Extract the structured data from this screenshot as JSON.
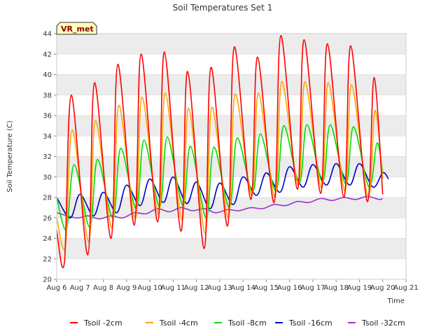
{
  "chart_data": {
    "type": "line",
    "title": "Soil Temperatures Set 1",
    "xlabel": "Time",
    "ylabel": "Soil Temperature (C)",
    "badge": "VR_met",
    "x_ticks": [
      "Aug 6",
      "Aug 7",
      "Aug 8",
      "Aug 9",
      "Aug 10",
      "Aug 11",
      "Aug 12",
      "Aug 13",
      "Aug 14",
      "Aug 15",
      "Aug 16",
      "Aug 17",
      "Aug 18",
      "Aug 19",
      "Aug 20",
      "Aug 21"
    ],
    "xlim": [
      "2024-08-06",
      "2024-08-21"
    ],
    "ylim": [
      20,
      44
    ],
    "y_ticks": [
      20,
      22,
      24,
      26,
      28,
      30,
      32,
      34,
      36,
      38,
      40,
      42,
      44
    ],
    "grid": "horizontal bands",
    "legend_position": "bottom",
    "sampling": "daily minimum (early morning) and daily maximum (afternoon)",
    "series": [
      {
        "name": "Tsoil -2cm",
        "color": "#ff0000",
        "points": [
          [
            "Aug 6 00:00",
            24.8
          ],
          [
            "Aug 6 08:00",
            21.7
          ],
          [
            "Aug 6 15:00",
            38.0
          ],
          [
            "Aug 7 08:00",
            22.4
          ],
          [
            "Aug 7 15:00",
            39.2
          ],
          [
            "Aug 8 08:00",
            24.0
          ],
          [
            "Aug 8 15:00",
            41.0
          ],
          [
            "Aug 9 08:00",
            25.3
          ],
          [
            "Aug 9 15:00",
            42.0
          ],
          [
            "Aug 10 08:00",
            25.6
          ],
          [
            "Aug 10 15:00",
            42.2
          ],
          [
            "Aug 11 08:00",
            24.7
          ],
          [
            "Aug 11 15:00",
            40.3
          ],
          [
            "Aug 12 08:00",
            23.0
          ],
          [
            "Aug 12 15:00",
            40.7
          ],
          [
            "Aug 13 08:00",
            25.2
          ],
          [
            "Aug 13 15:00",
            42.7
          ],
          [
            "Aug 14 08:00",
            27.8
          ],
          [
            "Aug 14 15:00",
            41.7
          ],
          [
            "Aug 15 08:00",
            27.5
          ],
          [
            "Aug 15 15:00",
            43.8
          ],
          [
            "Aug 16 08:00",
            28.8
          ],
          [
            "Aug 16 15:00",
            43.4
          ],
          [
            "Aug 17 08:00",
            28.4
          ],
          [
            "Aug 17 15:00",
            43.0
          ],
          [
            "Aug 18 08:00",
            28.0
          ],
          [
            "Aug 18 15:00",
            42.8
          ],
          [
            "Aug 19 08:00",
            27.6
          ],
          [
            "Aug 19 15:00",
            39.7
          ],
          [
            "Aug 20 00:00",
            28.3
          ]
        ]
      },
      {
        "name": "Tsoil -4cm",
        "color": "#ffa500",
        "points": [
          [
            "Aug 6 00:00",
            26.0
          ],
          [
            "Aug 6 09:00",
            23.2
          ],
          [
            "Aug 6 16:00",
            34.6
          ],
          [
            "Aug 7 09:00",
            23.7
          ],
          [
            "Aug 7 16:00",
            35.5
          ],
          [
            "Aug 8 09:00",
            25.0
          ],
          [
            "Aug 8 16:00",
            37.0
          ],
          [
            "Aug 9 09:00",
            26.0
          ],
          [
            "Aug 9 16:00",
            37.8
          ],
          [
            "Aug 10 09:00",
            26.3
          ],
          [
            "Aug 10 16:00",
            38.2
          ],
          [
            "Aug 11 09:00",
            25.8
          ],
          [
            "Aug 11 16:00",
            36.7
          ],
          [
            "Aug 12 09:00",
            24.5
          ],
          [
            "Aug 12 16:00",
            36.8
          ],
          [
            "Aug 13 09:00",
            26.0
          ],
          [
            "Aug 13 16:00",
            38.1
          ],
          [
            "Aug 14 09:00",
            28.2
          ],
          [
            "Aug 14 16:00",
            38.2
          ],
          [
            "Aug 15 09:00",
            28.0
          ],
          [
            "Aug 15 16:00",
            39.3
          ],
          [
            "Aug 16 09:00",
            29.2
          ],
          [
            "Aug 16 16:00",
            39.3
          ],
          [
            "Aug 17 09:00",
            28.9
          ],
          [
            "Aug 17 16:00",
            39.2
          ],
          [
            "Aug 18 09:00",
            28.6
          ],
          [
            "Aug 18 16:00",
            39.0
          ],
          [
            "Aug 19 09:00",
            28.0
          ],
          [
            "Aug 19 16:00",
            36.5
          ],
          [
            "Aug 20 00:00",
            29.8
          ]
        ]
      },
      {
        "name": "Tsoil -8cm",
        "color": "#00dd00",
        "points": [
          [
            "Aug 6 00:00",
            28.0
          ],
          [
            "Aug 6 10:00",
            24.9
          ],
          [
            "Aug 6 18:00",
            31.2
          ],
          [
            "Aug 7 10:00",
            25.1
          ],
          [
            "Aug 7 18:00",
            31.7
          ],
          [
            "Aug 8 10:00",
            26.0
          ],
          [
            "Aug 8 18:00",
            32.8
          ],
          [
            "Aug 9 10:00",
            26.9
          ],
          [
            "Aug 9 18:00",
            33.6
          ],
          [
            "Aug 10 10:00",
            27.1
          ],
          [
            "Aug 10 18:00",
            33.9
          ],
          [
            "Aug 11 10:00",
            27.2
          ],
          [
            "Aug 11 18:00",
            33.0
          ],
          [
            "Aug 12 10:00",
            26.0
          ],
          [
            "Aug 12 18:00",
            32.9
          ],
          [
            "Aug 13 10:00",
            27.0
          ],
          [
            "Aug 13 18:00",
            33.8
          ],
          [
            "Aug 14 10:00",
            28.5
          ],
          [
            "Aug 14 18:00",
            34.2
          ],
          [
            "Aug 15 10:00",
            28.6
          ],
          [
            "Aug 15 18:00",
            35.0
          ],
          [
            "Aug 16 10:00",
            29.4
          ],
          [
            "Aug 16 18:00",
            35.1
          ],
          [
            "Aug 17 10:00",
            29.5
          ],
          [
            "Aug 17 18:00",
            35.1
          ],
          [
            "Aug 18 10:00",
            29.3
          ],
          [
            "Aug 18 18:00",
            34.9
          ],
          [
            "Aug 19 10:00",
            29.0
          ],
          [
            "Aug 19 18:00",
            33.3
          ],
          [
            "Aug 20 00:00",
            30.5
          ]
        ]
      },
      {
        "name": "Tsoil -16cm",
        "color": "#0000cc",
        "points": [
          [
            "Aug 6 00:00",
            28.0
          ],
          [
            "Aug 6 14:00",
            26.0
          ],
          [
            "Aug 7 00:00",
            28.3
          ],
          [
            "Aug 7 14:00",
            26.2
          ],
          [
            "Aug 8 00:00",
            28.5
          ],
          [
            "Aug 8 14:00",
            26.5
          ],
          [
            "Aug 9 00:00",
            29.2
          ],
          [
            "Aug 9 14:00",
            27.2
          ],
          [
            "Aug 10 00:00",
            29.8
          ],
          [
            "Aug 10 14:00",
            27.5
          ],
          [
            "Aug 11 00:00",
            30.0
          ],
          [
            "Aug 11 14:00",
            27.4
          ],
          [
            "Aug 12 00:00",
            29.5
          ],
          [
            "Aug 12 14:00",
            26.9
          ],
          [
            "Aug 13 00:00",
            29.4
          ],
          [
            "Aug 13 14:00",
            27.3
          ],
          [
            "Aug 14 00:00",
            30.0
          ],
          [
            "Aug 14 14:00",
            28.2
          ],
          [
            "Aug 15 00:00",
            30.4
          ],
          [
            "Aug 15 14:00",
            28.5
          ],
          [
            "Aug 16 00:00",
            31.0
          ],
          [
            "Aug 16 14:00",
            29.0
          ],
          [
            "Aug 17 00:00",
            31.2
          ],
          [
            "Aug 17 14:00",
            29.2
          ],
          [
            "Aug 18 00:00",
            31.3
          ],
          [
            "Aug 18 14:00",
            29.2
          ],
          [
            "Aug 19 00:00",
            31.3
          ],
          [
            "Aug 19 14:00",
            29.0
          ],
          [
            "Aug 20 00:00",
            30.4
          ],
          [
            "Aug 20 06:00",
            29.8
          ]
        ]
      },
      {
        "name": "Tsoil -32cm",
        "color": "#9933cc",
        "points": [
          [
            "Aug 6 00:00",
            26.5
          ],
          [
            "Aug 6 20:00",
            26.0
          ],
          [
            "Aug 7 08:00",
            26.2
          ],
          [
            "Aug 7 20:00",
            25.9
          ],
          [
            "Aug 8 08:00",
            26.2
          ],
          [
            "Aug 8 20:00",
            26.0
          ],
          [
            "Aug 9 08:00",
            26.5
          ],
          [
            "Aug 9 20:00",
            26.4
          ],
          [
            "Aug 10 08:00",
            26.9
          ],
          [
            "Aug 10 20:00",
            26.6
          ],
          [
            "Aug 11 08:00",
            27.0
          ],
          [
            "Aug 11 20:00",
            26.7
          ],
          [
            "Aug 12 08:00",
            26.9
          ],
          [
            "Aug 12 20:00",
            26.5
          ],
          [
            "Aug 13 08:00",
            26.8
          ],
          [
            "Aug 13 20:00",
            26.7
          ],
          [
            "Aug 14 08:00",
            27.0
          ],
          [
            "Aug 14 20:00",
            26.9
          ],
          [
            "Aug 15 08:00",
            27.3
          ],
          [
            "Aug 15 20:00",
            27.2
          ],
          [
            "Aug 16 08:00",
            27.6
          ],
          [
            "Aug 16 20:00",
            27.5
          ],
          [
            "Aug 17 08:00",
            27.9
          ],
          [
            "Aug 17 20:00",
            27.7
          ],
          [
            "Aug 18 08:00",
            28.0
          ],
          [
            "Aug 18 20:00",
            27.8
          ],
          [
            "Aug 19 08:00",
            28.1
          ],
          [
            "Aug 19 20:00",
            27.8
          ],
          [
            "Aug 20 00:00",
            27.9
          ]
        ]
      }
    ]
  }
}
